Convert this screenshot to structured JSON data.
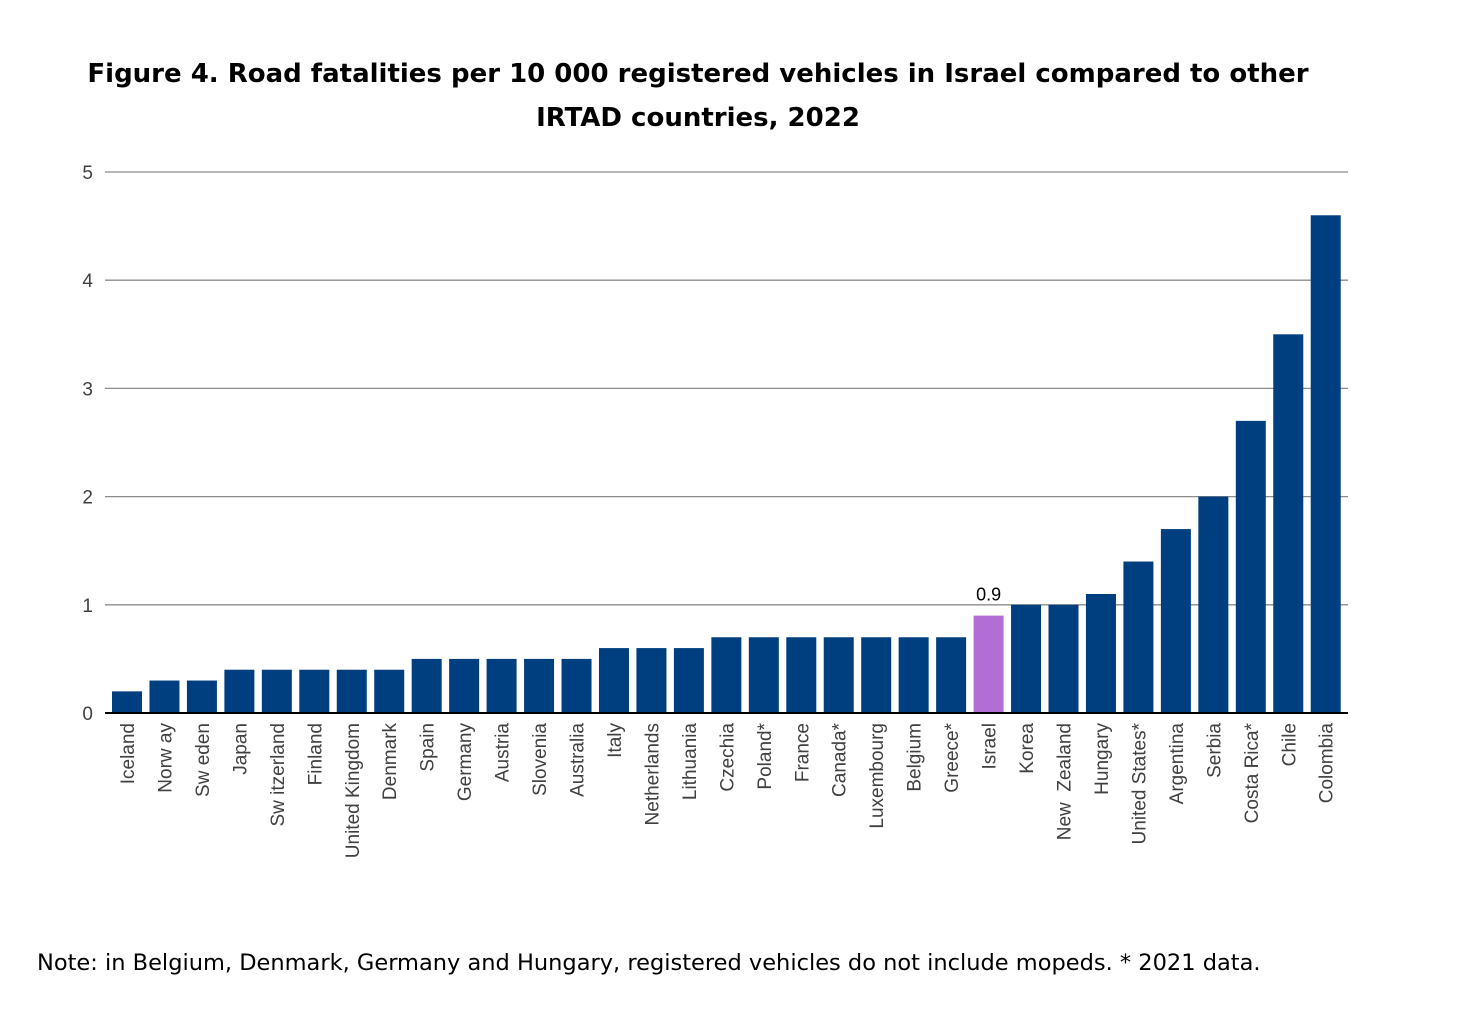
{
  "figure": {
    "title": "Figure 4. Road fatalities per 10 000 registered vehicles in Israel compared to other IRTAD countries, 2022",
    "note": "Note: in Belgium, Denmark, Germany and Hungary, registered vehicles do not include mopeds. * 2021 data."
  },
  "chart_data": {
    "type": "bar",
    "title": "Figure 4. Road fatalities per 10 000 registered vehicles in Israel compared to other IRTAD countries, 2022",
    "xlabel": "",
    "ylabel": "",
    "ylim": [
      0,
      5
    ],
    "yticks": [
      "0",
      "1",
      "2",
      "3",
      "4",
      "5"
    ],
    "grid": true,
    "legend": "none",
    "categories": [
      "Iceland",
      "Norw ay",
      "Sw eden",
      "Japan",
      "Sw itzerland",
      "Finland",
      "United Kingdom",
      "Denmark",
      "Spain",
      "Germany",
      "Austria",
      "Slovenia",
      "Australia",
      "Italy",
      "Netherlands",
      "Lithuania",
      "Czechia",
      "Poland*",
      "France",
      "Canada*",
      "Luxembourg",
      "Belgium",
      "Greece*",
      "Israel",
      "Korea",
      "New  Zealand",
      "Hungary",
      "United States*",
      "Argentina",
      "Serbia",
      "Costa Rica*",
      "Chile",
      "Colombia"
    ],
    "values": [
      0.2,
      0.3,
      0.3,
      0.4,
      0.4,
      0.4,
      0.4,
      0.4,
      0.5,
      0.5,
      0.5,
      0.5,
      0.5,
      0.6,
      0.6,
      0.6,
      0.7,
      0.7,
      0.7,
      0.7,
      0.7,
      0.7,
      0.7,
      0.9,
      1.0,
      1.0,
      1.1,
      1.4,
      1.7,
      2.0,
      2.7,
      3.5,
      4.6
    ],
    "highlight_index": 23,
    "data_labels": [
      {
        "index": 23,
        "text": "0.9"
      }
    ],
    "colors": {
      "bar": "#003f7f",
      "highlight": "#b36ed6",
      "grid": "#8c8c8c",
      "axis": "#000000",
      "tick_text": "#404040"
    }
  }
}
